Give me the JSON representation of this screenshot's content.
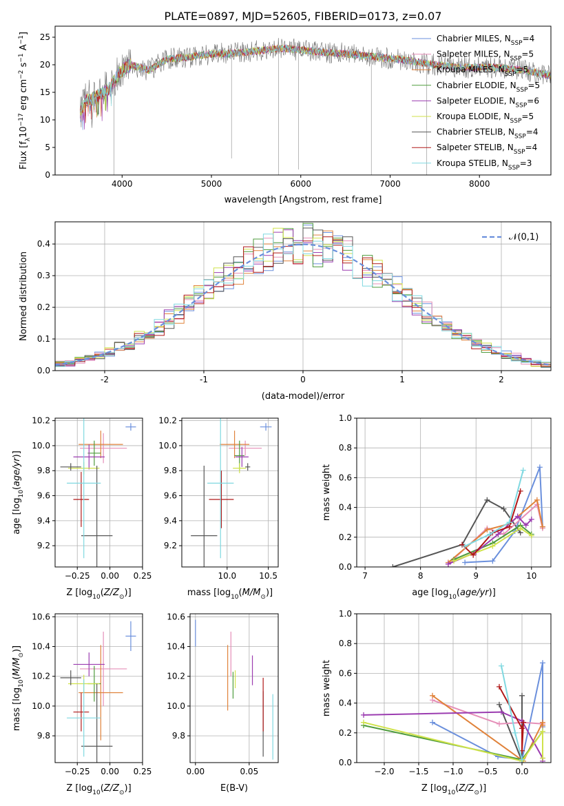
{
  "figure": {
    "title": "PLATE=0897, MJD=52605, FIBERID=0173, z=0.07"
  },
  "series_names": [
    "Chabrier MILES, N_SSP=4",
    "Salpeter MILES, N_SSP=5",
    "Kroupa MILES, N_SSP=5",
    "Chabrier ELODIE, N_SSP=5",
    "Salpeter ELODIE, N_SSP=6",
    "Kroupa ELODIE, N_SSP=5",
    "Chabrier STELIB, N_SSP=4",
    "Salpeter STELIB, N_SSP=4",
    "Kroupa STELIB, N_SSP=3"
  ],
  "colors": [
    "#6a8fdc",
    "#e58fb8",
    "#e0823a",
    "#4e9b3c",
    "#9b3cb0",
    "#cfe24a",
    "#555555",
    "#b01818",
    "#7fd8e0"
  ],
  "chart_data": [
    {
      "id": "spectrum",
      "type": "line",
      "xlabel": "wavelength [Angstrom, rest frame]",
      "ylabel": "Flux [f_λ 10^-17 erg cm^-2 s^-1 A^-1]",
      "xlim": [
        3250,
        8800
      ],
      "ylim": [
        0,
        27
      ],
      "xticks": [
        4000,
        5000,
        6000,
        7000,
        8000
      ],
      "yticks": [
        0,
        5,
        10,
        15,
        20,
        25
      ],
      "legend": "upper-right",
      "continuum_knots": [
        [
          3550,
          12
        ],
        [
          3600,
          13.5
        ],
        [
          3700,
          14
        ],
        [
          3800,
          15
        ],
        [
          3870,
          16
        ],
        [
          3950,
          18
        ],
        [
          4000,
          19
        ],
        [
          4100,
          20
        ],
        [
          4300,
          19
        ],
        [
          4500,
          21
        ],
        [
          4800,
          21.5
        ],
        [
          5000,
          22
        ],
        [
          5200,
          22
        ],
        [
          5500,
          22.5
        ],
        [
          5800,
          23
        ],
        [
          6100,
          22.5
        ],
        [
          6500,
          22
        ],
        [
          6800,
          21.5
        ],
        [
          7100,
          21
        ],
        [
          7500,
          20
        ],
        [
          7800,
          19.5
        ],
        [
          8200,
          19.5
        ],
        [
          8500,
          19
        ],
        [
          8800,
          18
        ]
      ],
      "spikes": [
        [
          3910,
          0
        ],
        [
          5225,
          3
        ],
        [
          5750,
          0
        ],
        [
          5975,
          1
        ],
        [
          6790,
          0
        ],
        [
          7410,
          0
        ]
      ]
    },
    {
      "id": "residuals",
      "type": "area",
      "xlabel": "(data-model)/error",
      "ylabel": "Normed distribution",
      "xlim": [
        -2.5,
        2.5
      ],
      "ylim": [
        0,
        0.47
      ],
      "xticks": [
        -2,
        -1,
        0,
        1,
        2
      ],
      "yticks": [
        0.0,
        0.1,
        0.2,
        0.3,
        0.4
      ],
      "reference": {
        "name": "𝒩(0,1)",
        "mean": 0,
        "sigma": 1
      },
      "legend": "upper-right"
    },
    {
      "id": "age_vs_Z",
      "type": "scatter",
      "xlabel": "Z [log10(Z/Z⊙)]",
      "ylabel": "age [log10(age/yr)]",
      "xlim": [
        -0.42,
        0.25
      ],
      "ylim": [
        9.03,
        10.22
      ],
      "xticks": [
        -0.25,
        0.0,
        0.25
      ],
      "xticklabels": [
        "−0.25",
        "0.00",
        "0.25"
      ],
      "yticks": [
        9.2,
        9.4,
        9.6,
        9.8,
        10.0,
        10.2
      ],
      "points": [
        {
          "x": 0.16,
          "y": 10.15,
          "xerr": 0.04,
          "yerr": 0.03,
          "c": 0
        },
        {
          "x": -0.05,
          "y": 9.98,
          "xerr": 0.18,
          "yerr": 0.12,
          "c": 1
        },
        {
          "x": -0.07,
          "y": 10.01,
          "xerr": 0.17,
          "yerr": 0.11,
          "c": 2
        },
        {
          "x": -0.12,
          "y": 9.94,
          "xerr": 0.05,
          "yerr": 0.1,
          "c": 3
        },
        {
          "x": -0.16,
          "y": 9.91,
          "xerr": 0.12,
          "yerr": 0.1,
          "c": 4
        },
        {
          "x": -0.2,
          "y": 9.82,
          "xerr": 0.12,
          "yerr": 0.05,
          "c": 5
        },
        {
          "x": -0.1,
          "y": 9.28,
          "xerr": 0.12,
          "yerr": 0.56,
          "c": 6
        },
        {
          "x": -0.22,
          "y": 9.57,
          "xerr": 0.06,
          "yerr": 0.22,
          "c": 7
        },
        {
          "x": -0.2,
          "y": 9.7,
          "xerr": 0.13,
          "yerr": 0.6,
          "c": 8
        },
        {
          "x": -0.3,
          "y": 9.83,
          "xerr": 0.08,
          "yerr": 0.03,
          "c": 6
        }
      ]
    },
    {
      "id": "age_vs_mass",
      "type": "scatter",
      "xlabel": "mass [log10(M/M⊙)]",
      "ylabel": "",
      "xlim": [
        9.45,
        10.62
      ],
      "ylim": [
        9.03,
        10.22
      ],
      "xticks": [
        10.0,
        10.5
      ],
      "xticklabels": [
        "10.0",
        "10.5"
      ],
      "yticks": [
        9.2,
        9.4,
        9.6,
        9.8,
        10.0,
        10.2
      ],
      "points": [
        {
          "x": 10.47,
          "y": 10.15,
          "xerr": 0.07,
          "yerr": 0.03,
          "c": 0
        },
        {
          "x": 10.22,
          "y": 9.98,
          "xerr": 0.2,
          "yerr": 0.06,
          "c": 1
        },
        {
          "x": 10.09,
          "y": 10.01,
          "xerr": 0.18,
          "yerr": 0.11,
          "c": 2
        },
        {
          "x": 10.15,
          "y": 9.92,
          "xerr": 0.06,
          "yerr": 0.12,
          "c": 3
        },
        {
          "x": 10.18,
          "y": 9.91,
          "xerr": 0.08,
          "yerr": 0.08,
          "c": 4
        },
        {
          "x": 10.15,
          "y": 9.82,
          "xerr": 0.08,
          "yerr": 0.04,
          "c": 5
        },
        {
          "x": 9.72,
          "y": 9.28,
          "xerr": 0.16,
          "yerr": 0.56,
          "c": 6
        },
        {
          "x": 9.93,
          "y": 9.57,
          "xerr": 0.15,
          "yerr": 0.23,
          "c": 7
        },
        {
          "x": 9.92,
          "y": 9.7,
          "xerr": 0.16,
          "yerr": 0.6,
          "c": 8
        },
        {
          "x": 10.25,
          "y": 9.83,
          "xerr": 0.03,
          "yerr": 0.03,
          "c": 6
        }
      ]
    },
    {
      "id": "mass_weight_vs_age",
      "type": "line",
      "xlabel": "age [log10(age/yr)]",
      "ylabel": "mass weight",
      "xlim": [
        6.85,
        10.35
      ],
      "ylim": [
        0,
        1.0
      ],
      "xticks": [
        7,
        8,
        9,
        10
      ],
      "yticks": [
        0.0,
        0.2,
        0.4,
        0.6,
        0.8,
        1.0
      ],
      "series": [
        {
          "c": 6,
          "x": [
            7.5,
            8.75,
            9.2,
            9.5,
            9.8
          ],
          "y": [
            0.0,
            0.15,
            0.45,
            0.39,
            0.23
          ]
        },
        {
          "c": 0,
          "x": [
            8.8,
            9.3,
            9.7,
            10.15,
            10.2
          ],
          "y": [
            0.03,
            0.04,
            0.24,
            0.67,
            0.27
          ]
        },
        {
          "c": 1,
          "x": [
            8.5,
            9.2,
            9.5,
            10.1,
            10.2
          ],
          "y": [
            0.02,
            0.26,
            0.22,
            0.42,
            0.26
          ]
        },
        {
          "c": 2,
          "x": [
            8.5,
            9.2,
            9.6,
            10.1,
            10.2
          ],
          "y": [
            0.03,
            0.25,
            0.29,
            0.45,
            0.27
          ]
        },
        {
          "c": 3,
          "x": [
            8.6,
            9.3,
            9.8,
            10.0
          ],
          "y": [
            0.05,
            0.16,
            0.28,
            0.22
          ]
        },
        {
          "c": 4,
          "x": [
            8.5,
            9.0,
            9.4,
            9.75,
            9.9,
            10.0
          ],
          "y": [
            0.02,
            0.1,
            0.22,
            0.34,
            0.28,
            0.32
          ]
        },
        {
          "c": 5,
          "x": [
            8.6,
            9.3,
            9.8,
            10.0
          ],
          "y": [
            0.04,
            0.14,
            0.26,
            0.21
          ]
        },
        {
          "c": 7,
          "x": [
            8.75,
            8.95,
            9.3,
            9.6,
            9.8
          ],
          "y": [
            0.15,
            0.08,
            0.23,
            0.27,
            0.51
          ]
        },
        {
          "c": 8,
          "x": [
            8.8,
            9.25,
            9.6,
            9.85
          ],
          "y": [
            0.14,
            0.22,
            0.3,
            0.65
          ]
        }
      ]
    },
    {
      "id": "mass_vs_Z",
      "type": "scatter",
      "xlabel": "Z [log10(Z/Z⊙)]",
      "ylabel": "mass [log10(M/M⊙)]",
      "xlim": [
        -0.42,
        0.25
      ],
      "ylim": [
        9.62,
        10.62
      ],
      "xticks": [
        -0.25,
        0.0,
        0.25
      ],
      "xticklabels": [
        "−0.25",
        "0.00",
        "0.25"
      ],
      "yticks": [
        9.8,
        10.0,
        10.2,
        10.4,
        10.6
      ],
      "points": [
        {
          "x": 0.16,
          "y": 10.47,
          "xerr": 0.04,
          "yerr": 0.1,
          "c": 0
        },
        {
          "x": -0.05,
          "y": 10.25,
          "xerr": 0.18,
          "yerr": 0.25,
          "c": 1
        },
        {
          "x": -0.07,
          "y": 10.09,
          "xerr": 0.17,
          "yerr": 0.32,
          "c": 2
        },
        {
          "x": -0.12,
          "y": 10.15,
          "xerr": 0.05,
          "yerr": 0.12,
          "c": 3
        },
        {
          "x": -0.16,
          "y": 10.28,
          "xerr": 0.12,
          "yerr": 0.08,
          "c": 4
        },
        {
          "x": -0.2,
          "y": 10.15,
          "xerr": 0.12,
          "yerr": 0.06,
          "c": 5
        },
        {
          "x": -0.1,
          "y": 9.73,
          "xerr": 0.12,
          "yerr": 0.42,
          "c": 6
        },
        {
          "x": -0.22,
          "y": 9.96,
          "xerr": 0.06,
          "yerr": 0.13,
          "c": 7
        },
        {
          "x": -0.2,
          "y": 9.92,
          "xerr": 0.13,
          "yerr": 0.26,
          "c": 8
        },
        {
          "x": -0.3,
          "y": 10.19,
          "xerr": 0.08,
          "yerr": 0.05,
          "c": 6
        }
      ]
    },
    {
      "id": "mass_vs_EBV",
      "type": "scatter",
      "xlabel": "E(B-V)",
      "ylabel": "",
      "xlim": [
        -0.005,
        0.077
      ],
      "ylim": [
        9.62,
        10.62
      ],
      "xticks": [
        0.0,
        0.05
      ],
      "xticklabels": [
        "0.00",
        "0.05"
      ],
      "yticks": [
        9.8,
        10.0,
        10.2,
        10.4,
        10.6
      ],
      "points": [
        {
          "x": 0.0,
          "y": 10.49,
          "xerr": 0,
          "yerr": 0.09,
          "c": 0
        },
        {
          "x": 0.033,
          "y": 10.35,
          "xerr": 0,
          "yerr": 0.15,
          "c": 1
        },
        {
          "x": 0.03,
          "y": 10.19,
          "xerr": 0,
          "yerr": 0.22,
          "c": 2
        },
        {
          "x": 0.035,
          "y": 10.14,
          "xerr": 0,
          "yerr": 0.09,
          "c": 3
        },
        {
          "x": 0.053,
          "y": 10.24,
          "xerr": 0,
          "yerr": 0.1,
          "c": 4
        },
        {
          "x": 0.037,
          "y": 10.18,
          "xerr": 0,
          "yerr": 0.06,
          "c": 5
        },
        {
          "x": 0.063,
          "y": 9.88,
          "xerr": 0,
          "yerr": 0.22,
          "c": 6
        },
        {
          "x": 0.063,
          "y": 10.01,
          "xerr": 0,
          "yerr": 0.18,
          "c": 7
        },
        {
          "x": 0.072,
          "y": 9.86,
          "xerr": 0,
          "yerr": 0.22,
          "c": 8
        }
      ]
    },
    {
      "id": "mass_weight_vs_Z",
      "type": "line",
      "xlabel": "Z [log10(Z/Z⊙)]",
      "ylabel": "mass weight",
      "xlim": [
        -2.4,
        0.42
      ],
      "ylim": [
        0,
        1.0
      ],
      "xticks": [
        -2.0,
        -1.5,
        -1.0,
        -0.5,
        0.0
      ],
      "xticklabels": [
        "−2.0",
        "−1.5",
        "−1.0",
        "−0.5",
        "0.0"
      ],
      "yticks": [
        0.0,
        0.2,
        0.4,
        0.6,
        0.8,
        1.0
      ],
      "series": [
        {
          "c": 6,
          "x": [
            -0.33,
            0.0,
            0.0
          ],
          "y": [
            0.39,
            0.01,
            0.45
          ]
        },
        {
          "c": 0,
          "x": [
            -1.3,
            -0.35,
            0.0,
            0.3,
            0.3
          ],
          "y": [
            0.27,
            0.04,
            0.02,
            0.67,
            0.24
          ]
        },
        {
          "c": 1,
          "x": [
            -1.3,
            -0.33,
            0.02,
            0.3
          ],
          "y": [
            0.42,
            0.26,
            0.27,
            0.26
          ]
        },
        {
          "c": 2,
          "x": [
            -1.3,
            0.02,
            0.3,
            0.3
          ],
          "y": [
            0.45,
            0.01,
            0.27,
            0.25
          ]
        },
        {
          "c": 3,
          "x": [
            -2.3,
            0.0,
            0.3
          ],
          "y": [
            0.25,
            0.02,
            0.21
          ]
        },
        {
          "c": 4,
          "x": [
            -2.3,
            -0.3,
            0.0,
            0.3,
            0.3
          ],
          "y": [
            0.32,
            0.34,
            0.28,
            0.03,
            0.01
          ]
        },
        {
          "c": 5,
          "x": [
            -2.3,
            0.0,
            0.3,
            0.3
          ],
          "y": [
            0.27,
            0.01,
            0.21,
            0.03
          ]
        },
        {
          "c": 7,
          "x": [
            -0.33,
            0.0,
            0.0,
            0.02
          ],
          "y": [
            0.51,
            0.23,
            0.08,
            0.27
          ]
        },
        {
          "c": 8,
          "x": [
            -0.3,
            -0.1,
            0.0
          ],
          "y": [
            0.65,
            0.2,
            0.02
          ]
        }
      ]
    }
  ]
}
